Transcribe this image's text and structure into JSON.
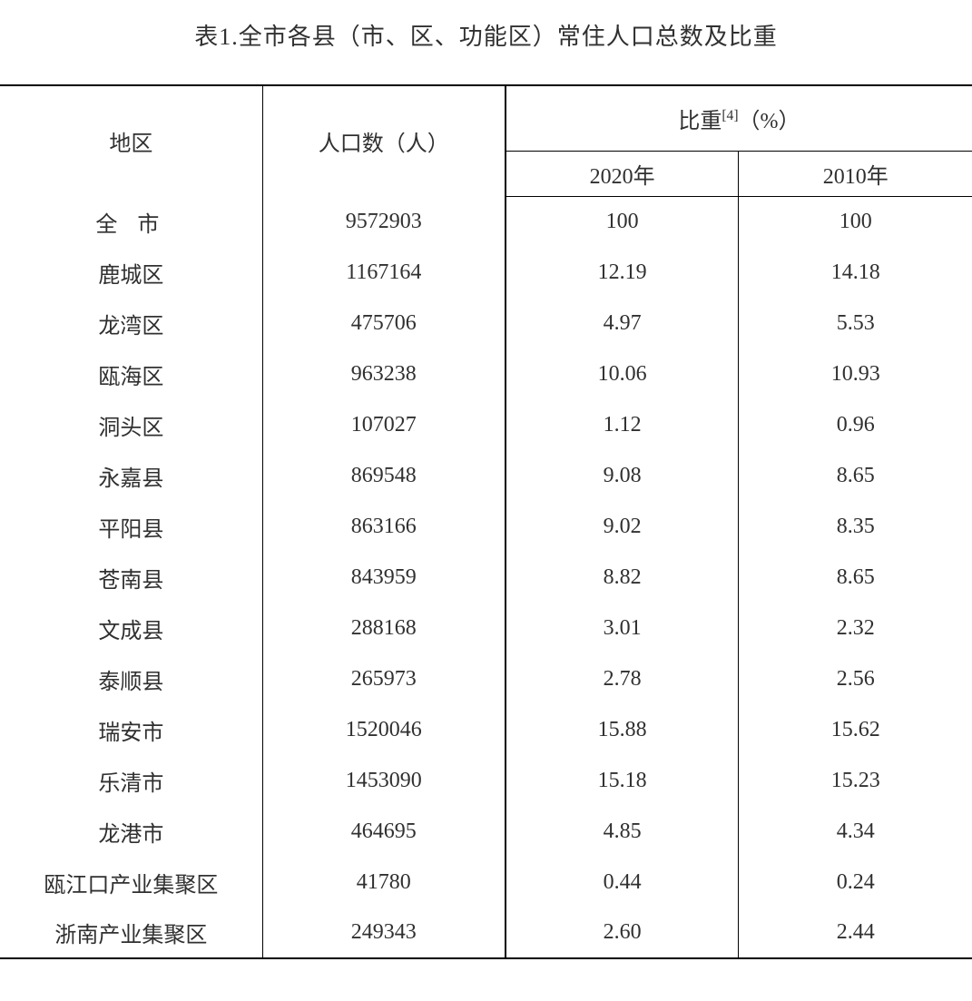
{
  "title": "表1.全市各县（市、区、功能区）常住人口总数及比重",
  "table": {
    "type": "table",
    "columns": {
      "region": "地区",
      "population": "人口数（人）",
      "ratio_group": "比重",
      "ratio_footnote": "[4]",
      "ratio_unit": "（%）",
      "year_2020": "2020年",
      "year_2010": "2010年"
    },
    "column_widths_pct": [
      27,
      25,
      24,
      24
    ],
    "colors": {
      "text": "#303030",
      "border": "#000000",
      "background": "#ffffff"
    },
    "font_size_pt": 18,
    "rows": [
      {
        "region": "全 市",
        "population": "9572903",
        "y2020": "100",
        "y2010": "100",
        "spaced": true
      },
      {
        "region": "鹿城区",
        "population": "1167164",
        "y2020": "12.19",
        "y2010": "14.18"
      },
      {
        "region": "龙湾区",
        "population": "475706",
        "y2020": "4.97",
        "y2010": "5.53"
      },
      {
        "region": "瓯海区",
        "population": "963238",
        "y2020": "10.06",
        "y2010": "10.93"
      },
      {
        "region": "洞头区",
        "population": "107027",
        "y2020": "1.12",
        "y2010": "0.96"
      },
      {
        "region": "永嘉县",
        "population": "869548",
        "y2020": "9.08",
        "y2010": "8.65"
      },
      {
        "region": "平阳县",
        "population": "863166",
        "y2020": "9.02",
        "y2010": "8.35"
      },
      {
        "region": "苍南县",
        "population": "843959",
        "y2020": "8.82",
        "y2010": "8.65"
      },
      {
        "region": "文成县",
        "population": "288168",
        "y2020": "3.01",
        "y2010": "2.32"
      },
      {
        "region": "泰顺县",
        "population": "265973",
        "y2020": "2.78",
        "y2010": "2.56"
      },
      {
        "region": "瑞安市",
        "population": "1520046",
        "y2020": "15.88",
        "y2010": "15.62"
      },
      {
        "region": "乐清市",
        "population": "1453090",
        "y2020": "15.18",
        "y2010": "15.23"
      },
      {
        "region": "龙港市",
        "population": "464695",
        "y2020": "4.85",
        "y2010": "4.34"
      },
      {
        "region": "瓯江口产业集聚区",
        "population": "41780",
        "y2020": "0.44",
        "y2010": "0.24"
      },
      {
        "region": "浙南产业集聚区",
        "population": "249343",
        "y2020": "2.60",
        "y2010": "2.44"
      }
    ]
  }
}
